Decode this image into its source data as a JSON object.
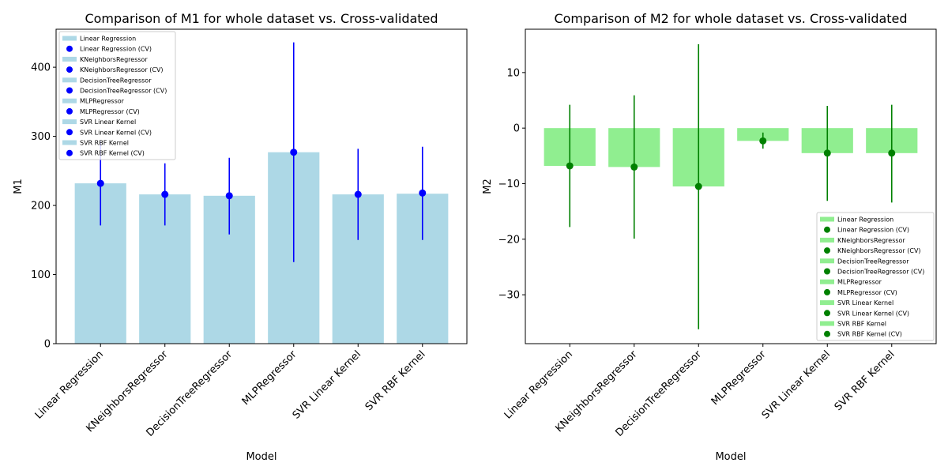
{
  "chart_data": [
    {
      "type": "bar",
      "title": "Comparison of M1 for whole dataset vs. Cross-validated",
      "xlabel": "Model",
      "ylabel": "M1",
      "categories": [
        "Linear Regression",
        "KNeighborsRegressor",
        "DecisionTreeRegressor",
        "MLPRegressor",
        "SVR Linear Kernel",
        "SVR RBF Kernel"
      ],
      "values": [
        232,
        216,
        214,
        277,
        216,
        217
      ],
      "cv_mean": [
        232,
        216,
        214,
        277,
        216,
        218
      ],
      "cv_low": [
        171,
        171,
        158,
        118,
        150,
        150
      ],
      "cv_high": [
        293,
        261,
        269,
        436,
        282,
        285
      ],
      "ylim": [
        0,
        455
      ],
      "yticks": [
        0,
        100,
        200,
        300,
        400
      ],
      "bar_color": "#add8e6",
      "point_color": "#0000ff",
      "legend_position": "upper-left",
      "legend_entries": [
        "Linear Regression",
        "Linear Regression (CV)",
        "KNeighborsRegressor",
        "KNeighborsRegressor (CV)",
        "DecisionTreeRegressor",
        "DecisionTreeRegressor (CV)",
        "MLPRegressor",
        "MLPRegressor (CV)",
        "SVR Linear Kernel",
        "SVR Linear Kernel (CV)",
        "SVR RBF Kernel",
        "SVR RBF Kernel (CV)"
      ]
    },
    {
      "type": "bar",
      "title": "Comparison of M2 for whole dataset vs. Cross-validated",
      "xlabel": "Model",
      "ylabel": "M2",
      "categories": [
        "Linear Regression",
        "KNeighborsRegressor",
        "DecisionTreeRegressor",
        "MLPRegressor",
        "SVR Linear Kernel",
        "SVR RBF Kernel"
      ],
      "values": [
        -6.8,
        -7.0,
        -10.5,
        -2.3,
        -4.5,
        -4.5
      ],
      "cv_mean": [
        -6.8,
        -7.0,
        -10.5,
        -2.3,
        -4.5,
        -4.5
      ],
      "cv_low": [
        -17.8,
        -19.9,
        -36.2,
        -3.7,
        -13.1,
        -13.4
      ],
      "cv_high": [
        4.2,
        5.9,
        15.1,
        -0.8,
        4.0,
        4.2
      ],
      "ylim": [
        -38.8,
        17.8
      ],
      "yticks": [
        -30,
        -20,
        -10,
        0,
        10
      ],
      "bar_color": "#90ee90",
      "point_color": "#008000",
      "legend_position": "lower-right",
      "legend_entries": [
        "Linear Regression",
        "Linear Regression (CV)",
        "KNeighborsRegressor",
        "KNeighborsRegressor (CV)",
        "DecisionTreeRegressor",
        "DecisionTreeRegressor (CV)",
        "MLPRegressor",
        "MLPRegressor (CV)",
        "SVR Linear Kernel",
        "SVR Linear Kernel (CV)",
        "SVR RBF Kernel",
        "SVR RBF Kernel (CV)"
      ]
    }
  ]
}
